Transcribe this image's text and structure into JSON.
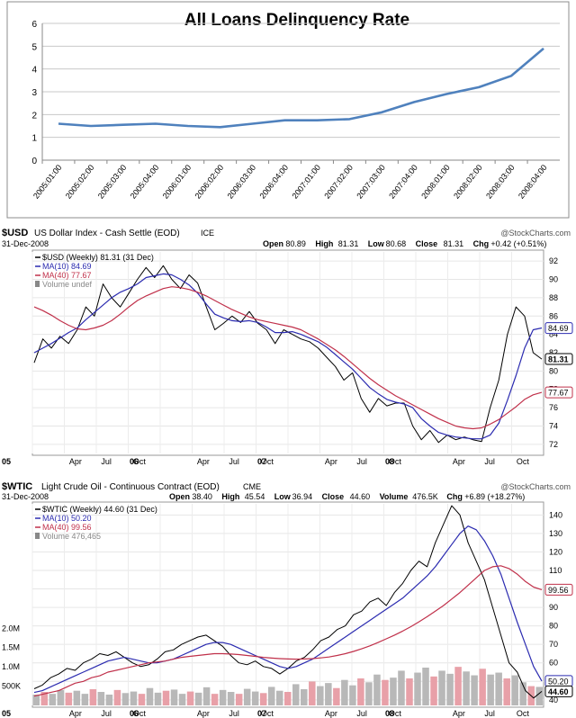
{
  "chart_data": [
    {
      "type": "line",
      "title": "All Loans Delinquency Rate",
      "categories": [
        "2005:01:00",
        "2005:02:00",
        "2005:03:00",
        "2005:04:00",
        "2006:01:00",
        "2006:02:00",
        "2006:03:00",
        "2006:04:00",
        "2007:01:00",
        "2007:02:00",
        "2007:03:00",
        "2007:04:00",
        "2008:01:00",
        "2008:02:00",
        "2008:03:00",
        "2008:04:00"
      ],
      "values": [
        1.6,
        1.5,
        1.55,
        1.6,
        1.5,
        1.45,
        1.6,
        1.75,
        1.75,
        1.8,
        2.1,
        2.55,
        2.9,
        3.2,
        3.7,
        4.9
      ],
      "ylim": [
        0,
        6
      ],
      "yticks": [
        "0",
        "1",
        "2",
        "3",
        "4",
        "5",
        "6"
      ],
      "color": "#4f81bd",
      "grid": true
    },
    {
      "type": "line",
      "header": {
        "symbol": "$USD",
        "name": "US Dollar Index - Cash Settle (EOD)",
        "exchange": "ICE",
        "date": "31-Dec-2008",
        "watermark": "@StockCharts.com",
        "stats": [
          {
            "label": "Open",
            "value": "80.89"
          },
          {
            "label": "High",
            "value": "81.31"
          },
          {
            "label": "Low",
            "value": "80.68"
          },
          {
            "label": "Close",
            "value": "81.31"
          },
          {
            "label": "Chg",
            "value": "+0.42 (+0.51%)"
          }
        ]
      },
      "legend": [
        {
          "text": "$USD (Weekly) 81.31 (31 Dec)",
          "color": "#000000"
        },
        {
          "text": "MA(10) 84.69",
          "color": "#2b2bb0"
        },
        {
          "text": "MA(40) 77.67",
          "color": "#c0304a"
        },
        {
          "text": "Volume undef",
          "color": "#888888"
        }
      ],
      "xlabels": [
        "05",
        "Apr",
        "Jul",
        "Oct",
        "06",
        "Apr",
        "Jul",
        "Oct",
        "07",
        "Apr",
        "Jul",
        "Oct",
        "08",
        "Apr",
        "Jul",
        "Oct"
      ],
      "yticks": [
        "72",
        "74",
        "76",
        "78",
        "80",
        "82",
        "84",
        "86",
        "88",
        "90",
        "92"
      ],
      "ylim": [
        71,
        93
      ],
      "series": [
        {
          "name": "$USD",
          "color": "#000000",
          "values": [
            80.9,
            83.5,
            82.5,
            83.8,
            83,
            84.5,
            87,
            86,
            89.5,
            88,
            87,
            88.5,
            90,
            91.3,
            90.2,
            91.5,
            90,
            89,
            90.5,
            89.6,
            87,
            84.5,
            85.2,
            86,
            85.3,
            86.5,
            85.2,
            84.5,
            83,
            84.5,
            84,
            83.5,
            83.2,
            82.5,
            81.5,
            80.5,
            79,
            79.8,
            77,
            75.5,
            77,
            76.2,
            76.5,
            76.5,
            74,
            72.5,
            73.5,
            72.2,
            73,
            72.5,
            72.8,
            72.5,
            72.3,
            76,
            79,
            84,
            87,
            86,
            82,
            81.3
          ]
        },
        {
          "name": "MA(10)",
          "color": "#2b2bb0",
          "values": [
            82,
            82.5,
            83,
            83.6,
            84.2,
            84.7,
            85.6,
            86.4,
            87.2,
            88,
            88.6,
            89,
            89.5,
            90.2,
            90.4,
            90.6,
            90.5,
            90,
            89.4,
            88.5,
            87.3,
            86.2,
            85.8,
            85.5,
            85.4,
            85.5,
            85.3,
            84.8,
            84.2,
            84.2,
            84.3,
            84,
            83.6,
            83.2,
            82.6,
            81.8,
            81,
            80.2,
            79.2,
            78.2,
            77.5,
            76.9,
            76.6,
            76.4,
            76,
            74.8,
            74,
            73.3,
            73,
            72.8,
            72.7,
            72.6,
            72.6,
            73,
            74.3,
            76.8,
            79.5,
            82.5,
            84.5,
            84.7
          ]
        },
        {
          "name": "MA(40)",
          "color": "#c0304a",
          "values": [
            87,
            86.6,
            86.1,
            85.5,
            85,
            84.6,
            84.5,
            84.7,
            85,
            85.5,
            86.2,
            87,
            87.7,
            88.2,
            88.6,
            89,
            89.2,
            89.1,
            88.9,
            88.6,
            88.2,
            87.7,
            87.2,
            86.7,
            86.3,
            85.9,
            85.6,
            85.4,
            85.2,
            85,
            84.8,
            84.5,
            84,
            83.5,
            82.9,
            82.3,
            81.6,
            80.8,
            80,
            79.2,
            78.5,
            77.9,
            77.3,
            76.8,
            76.3,
            75.8,
            75.3,
            74.8,
            74.4,
            74,
            73.8,
            73.7,
            73.8,
            74.2,
            74.7,
            75.4,
            76.1,
            76.9,
            77.4,
            77.67
          ]
        }
      ],
      "end_labels": [
        {
          "text": "84.69",
          "value": 84.69,
          "color": "#2b2bb0"
        },
        {
          "text": "81.31",
          "value": 81.31,
          "color": "#000000"
        },
        {
          "text": "77.67",
          "value": 77.67,
          "color": "#c0304a"
        }
      ]
    },
    {
      "type": "line",
      "header": {
        "symbol": "$WTIC",
        "name": "Light Crude Oil - Continuous Contract (EOD)",
        "exchange": "CME",
        "date": "31-Dec-2008",
        "watermark": "@StockCharts.com",
        "stats": [
          {
            "label": "Open",
            "value": "38.40"
          },
          {
            "label": "High",
            "value": "45.54"
          },
          {
            "label": "Low",
            "value": "36.94"
          },
          {
            "label": "Close",
            "value": "44.60"
          },
          {
            "label": "Volume",
            "value": "476.5K"
          },
          {
            "label": "Chg",
            "value": "+6.89 (+18.27%)"
          }
        ]
      },
      "legend": [
        {
          "text": "$WTIC (Weekly) 44.60 (31 Dec)",
          "color": "#000000"
        },
        {
          "text": "MA(10) 50.20",
          "color": "#2b2bb0"
        },
        {
          "text": "MA(40) 99.56",
          "color": "#c0304a"
        },
        {
          "text": "Volume 476,465",
          "color": "#888888"
        }
      ],
      "xlabels": [
        "05",
        "Apr",
        "Jul",
        "Oct",
        "06",
        "Apr",
        "Jul",
        "Oct",
        "07",
        "Apr",
        "Jul",
        "Oct",
        "08",
        "Apr",
        "Jul",
        "Oct"
      ],
      "yticks": [
        "40",
        "50",
        "60",
        "70",
        "80",
        "90",
        "100",
        "110",
        "120",
        "130",
        "140"
      ],
      "vol_ticks": [
        "500K",
        "1.0M",
        "1.5M",
        "2.0M"
      ],
      "ylim": [
        37,
        146
      ],
      "vol_max": 2.8,
      "series": [
        {
          "name": "$WTIC",
          "color": "#000000",
          "values": [
            46,
            48,
            52,
            54,
            57,
            56,
            60,
            62,
            65,
            64,
            66,
            63,
            60,
            58,
            59,
            62,
            66,
            67,
            70,
            72,
            74,
            75,
            72,
            69,
            64,
            60,
            59,
            61,
            58,
            57,
            54,
            57,
            61,
            63,
            67,
            72,
            74,
            78,
            80,
            86,
            88,
            93,
            95,
            91,
            98,
            103,
            110,
            115,
            112,
            125,
            135,
            145,
            140,
            125,
            115,
            105,
            90,
            75,
            60,
            55,
            45,
            41,
            44.6
          ]
        },
        {
          "name": "MA(10)",
          "color": "#2b2bb0",
          "values": [
            44,
            45,
            47,
            49,
            51,
            53,
            55,
            57,
            59,
            61,
            62,
            63,
            62,
            61,
            60,
            60,
            61,
            62,
            64,
            66,
            68,
            70,
            71,
            71,
            70,
            68,
            66,
            64,
            62,
            60,
            58,
            57,
            58,
            60,
            62,
            65,
            68,
            71,
            74,
            77,
            80,
            83,
            86,
            89,
            92,
            95,
            99,
            103,
            107,
            112,
            118,
            124,
            130,
            134,
            132,
            126,
            118,
            108,
            95,
            82,
            70,
            58,
            50.2
          ]
        },
        {
          "name": "MA(40)",
          "color": "#c0304a",
          "values": [
            42,
            43,
            44,
            45,
            47,
            49,
            50,
            52,
            53,
            55,
            56,
            57,
            58,
            59,
            60,
            60.5,
            61,
            62,
            63,
            63.5,
            64,
            64.5,
            65,
            65,
            64.8,
            64.5,
            64,
            63.5,
            63,
            62.6,
            62.3,
            62.1,
            62,
            62.1,
            62.3,
            62.7,
            63.2,
            64,
            65,
            66.2,
            67.6,
            69.2,
            71,
            73,
            75,
            77.2,
            79.6,
            82.2,
            85,
            88,
            91,
            94.5,
            98,
            102,
            106,
            110,
            112,
            112.5,
            111,
            108,
            104,
            101,
            99.56
          ]
        },
        {
          "name": "Volume",
          "color": "#999999",
          "values": [
            0.28,
            0.35,
            0.3,
            0.4,
            0.33,
            0.38,
            0.3,
            0.42,
            0.35,
            0.28,
            0.4,
            0.32,
            0.36,
            0.3,
            0.45,
            0.33,
            0.38,
            0.41,
            0.3,
            0.36,
            0.33,
            0.47,
            0.3,
            0.4,
            0.35,
            0.3,
            0.43,
            0.36,
            0.32,
            0.48,
            0.38,
            0.35,
            0.55,
            0.42,
            0.62,
            0.5,
            0.58,
            0.45,
            0.66,
            0.52,
            0.7,
            0.6,
            0.8,
            0.66,
            0.72,
            0.9,
            0.7,
            0.85,
            0.98,
            0.75,
            0.9,
            0.82,
            1.0,
            0.88,
            0.78,
            0.95,
            0.8,
            0.85,
            0.7,
            0.78,
            0.6,
            0.5,
            0.48
          ]
        }
      ],
      "end_labels": [
        {
          "text": "99.56",
          "value": 99.56,
          "color": "#c0304a"
        },
        {
          "text": "50.20",
          "value": 50.2,
          "color": "#2b2bb0"
        },
        {
          "text": "44.60",
          "value": 44.6,
          "color": "#000000"
        }
      ]
    }
  ]
}
